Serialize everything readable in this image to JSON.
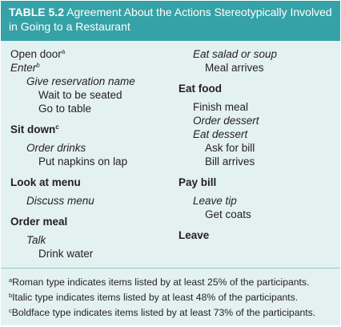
{
  "table": {
    "number": "TABLE 5.2",
    "title_line1": "Agreement About the Actions Stereotypically Involved",
    "title_line2": "in Going to a Restaurant"
  },
  "left_column": [
    {
      "text": "Open door",
      "mark": "a",
      "style": "roman",
      "indent": 0
    },
    {
      "text": "Enter",
      "mark": "b",
      "style": "italic",
      "indent": 0
    },
    {
      "text": "Give reservation name",
      "mark": "",
      "style": "italic",
      "indent": 1
    },
    {
      "text": "Wait to be seated",
      "mark": "",
      "style": "roman",
      "indent": 2
    },
    {
      "text": "Go to table",
      "mark": "",
      "style": "roman",
      "indent": 2
    },
    {
      "text": "Sit down",
      "mark": "c",
      "style": "bold",
      "indent": 0
    },
    {
      "text": "Order drinks",
      "mark": "",
      "style": "italic",
      "indent": 1
    },
    {
      "text": "Put napkins on lap",
      "mark": "",
      "style": "roman",
      "indent": 2
    },
    {
      "text": "Look at menu",
      "mark": "",
      "style": "bold",
      "indent": 0
    },
    {
      "text": "Discuss menu",
      "mark": "",
      "style": "italic",
      "indent": 1
    },
    {
      "text": "Order meal",
      "mark": "",
      "style": "bold",
      "indent": 0
    },
    {
      "text": "Talk",
      "mark": "",
      "style": "italic",
      "indent": 1
    },
    {
      "text": "Drink water",
      "mark": "",
      "style": "roman",
      "indent": 2
    }
  ],
  "right_column": [
    {
      "text": "Eat salad or soup",
      "mark": "",
      "style": "italic",
      "indent": 1
    },
    {
      "text": "Meal arrives",
      "mark": "",
      "style": "roman",
      "indent": 2
    },
    {
      "text": "Eat food",
      "mark": "",
      "style": "bold",
      "indent": 0
    },
    {
      "text": "Finish meal",
      "mark": "",
      "style": "roman",
      "indent": 1
    },
    {
      "text": "Order dessert",
      "mark": "",
      "style": "italic",
      "indent": 1
    },
    {
      "text": "Eat dessert",
      "mark": "",
      "style": "italic",
      "indent": 1
    },
    {
      "text": "Ask for bill",
      "mark": "",
      "style": "roman",
      "indent": 2
    },
    {
      "text": "Bill arrives",
      "mark": "",
      "style": "roman",
      "indent": 2
    },
    {
      "text": "Pay bill",
      "mark": "",
      "style": "bold",
      "indent": 0
    },
    {
      "text": "Leave tip",
      "mark": "",
      "style": "italic",
      "indent": 1
    },
    {
      "text": "Get coats",
      "mark": "",
      "style": "roman",
      "indent": 2
    },
    {
      "text": "Leave",
      "mark": "",
      "style": "bold",
      "indent": 0
    }
  ],
  "footnotes": [
    {
      "mark": "a",
      "text": "Roman type indicates items listed by at least 25% of the participants."
    },
    {
      "mark": "b",
      "text": "Italic type indicates items listed by at least 48% of the participants."
    },
    {
      "mark": "c",
      "text": "Boldface type indicates items listed by at least 73% of the participants."
    }
  ],
  "colors": {
    "header_bg": "#35a2a7",
    "body_bg": "#e4f1f1"
  }
}
